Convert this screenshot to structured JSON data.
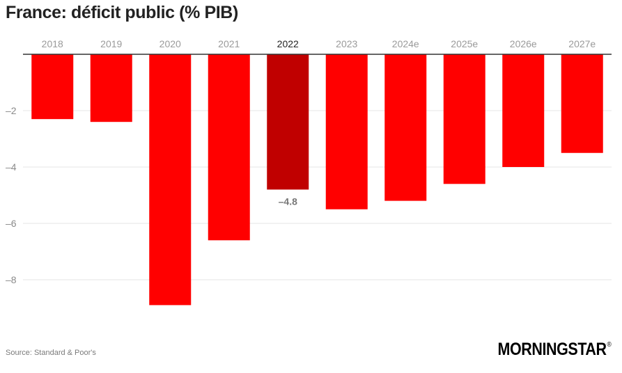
{
  "title": "France: déficit public (% PIB)",
  "source": "Source: Standard & Poor's",
  "logo": {
    "text": "MORNINGSTAR",
    "mark": "®"
  },
  "colors": {
    "bar": "#ff0000",
    "highlight": "#c00000",
    "grid": "#e6e6e6",
    "axis": "#333333"
  },
  "chart_data": {
    "type": "bar",
    "title": "France: déficit public (% PIB)",
    "xlabel": "",
    "ylabel": "",
    "categories": [
      "2018",
      "2019",
      "2020",
      "2021",
      "2022",
      "2023",
      "2024e",
      "2025e",
      "2026e",
      "2027e"
    ],
    "values": [
      -2.3,
      -2.4,
      -8.9,
      -6.6,
      -4.8,
      -5.5,
      -5.2,
      -4.6,
      -4.0,
      -3.5
    ],
    "highlight_category": "2022",
    "data_labels": [
      {
        "category": "2022",
        "text": "–4.8"
      }
    ],
    "yticks": [
      -2,
      -4,
      -6,
      -8
    ],
    "ytick_labels": [
      "–2",
      "–4",
      "–6",
      "–8"
    ],
    "ylim": [
      -9.5,
      0
    ],
    "grid": true,
    "category_labels_position": "top"
  }
}
